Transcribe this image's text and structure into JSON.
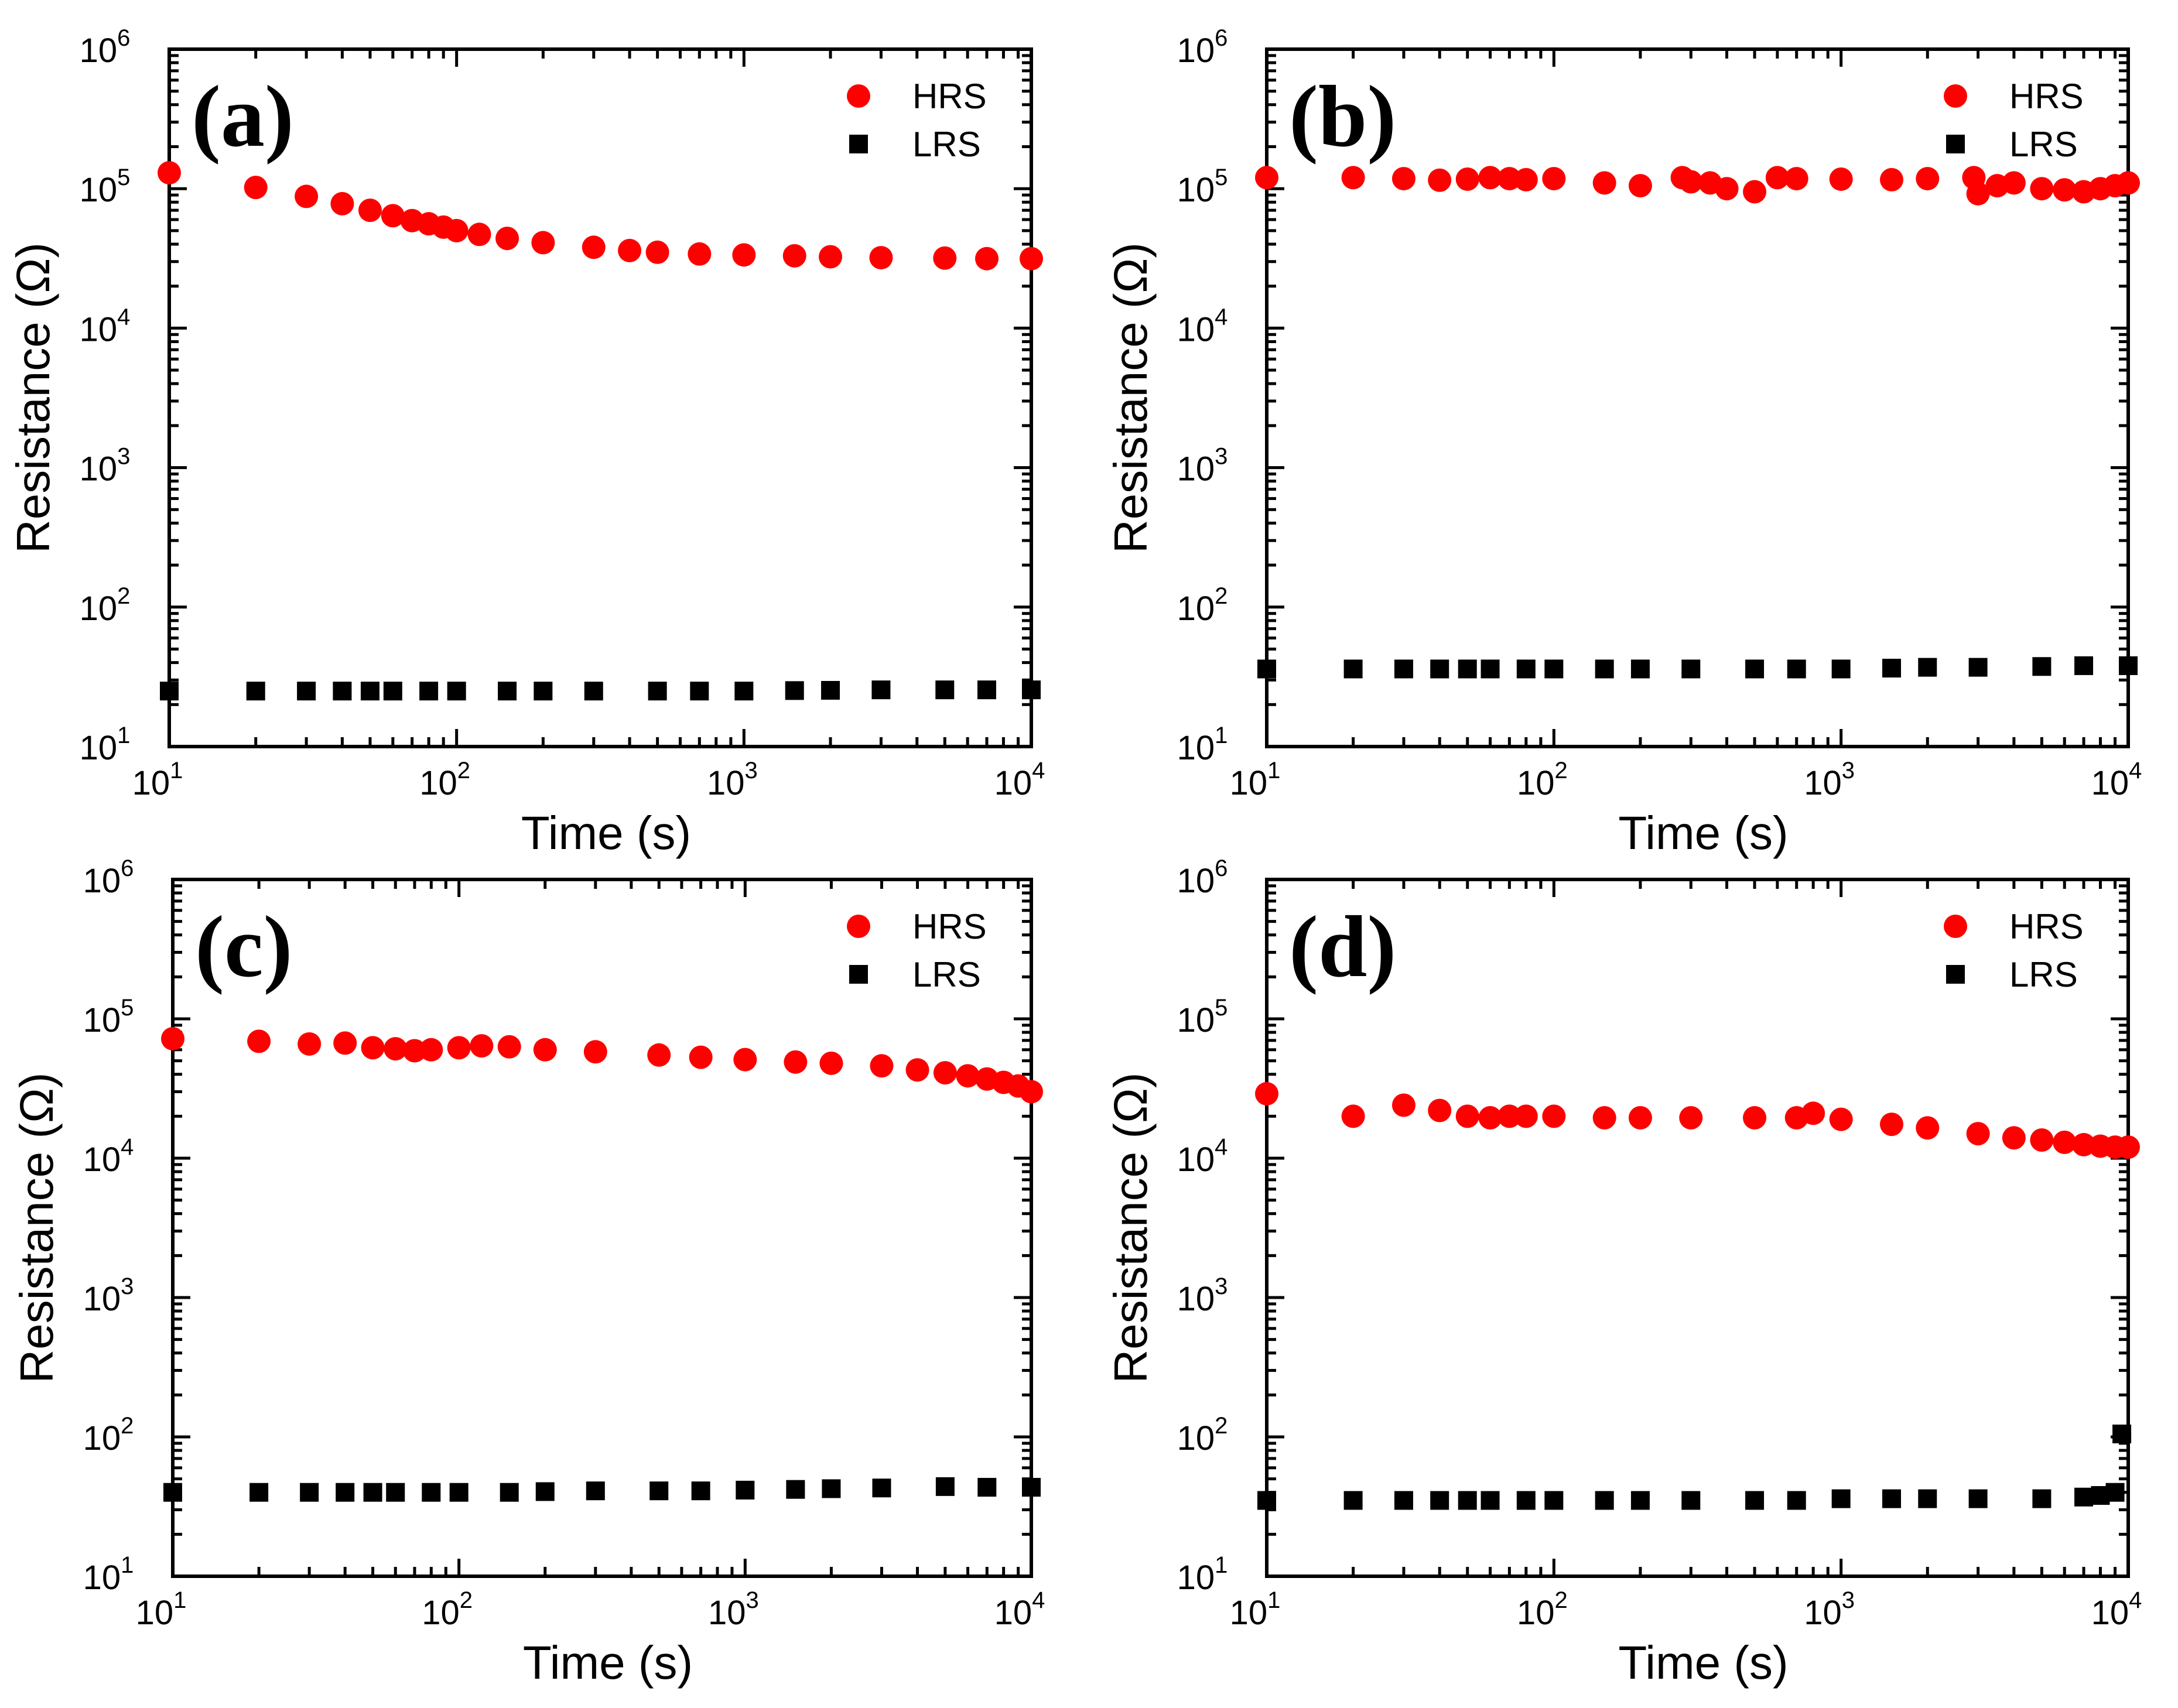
{
  "figure": {
    "description_free": true
  },
  "chart_data": [
    {
      "type": "scatter",
      "panel_label": "(a)",
      "xlabel": "Time (s)",
      "ylabel": "Resistance (Ω)",
      "xscale": "log",
      "yscale": "log",
      "xlim": [
        10,
        10000
      ],
      "ylim": [
        10,
        1000000
      ],
      "x_tick_labels": [
        {
          "base": "10",
          "exp": "1"
        },
        {
          "base": "10",
          "exp": "2"
        },
        {
          "base": "10",
          "exp": "3"
        },
        {
          "base": "10",
          "exp": "4"
        }
      ],
      "y_tick_labels": [
        {
          "base": "10",
          "exp": "1"
        },
        {
          "base": "10",
          "exp": "2"
        },
        {
          "base": "10",
          "exp": "3"
        },
        {
          "base": "10",
          "exp": "4"
        },
        {
          "base": "10",
          "exp": "5"
        },
        {
          "base": "10",
          "exp": "6"
        }
      ],
      "legend_position": "top-right",
      "series": [
        {
          "name": "HRS",
          "marker": "circle",
          "color": "#ff0000",
          "x": [
            10,
            20,
            30,
            40,
            50,
            60,
            70,
            80,
            90,
            100,
            120,
            150,
            200,
            300,
            400,
            500,
            700,
            1000,
            1500,
            2000,
            3000,
            5000,
            7000,
            10000
          ],
          "y": [
            130000,
            102000,
            88000,
            78000,
            70000,
            64000,
            59000,
            56000,
            53000,
            50000,
            47000,
            44000,
            41000,
            38000,
            36000,
            35000,
            34000,
            33500,
            33000,
            32500,
            32000,
            31800,
            31500,
            31500
          ]
        },
        {
          "name": "LRS",
          "marker": "square",
          "color": "#000000",
          "x": [
            10,
            20,
            30,
            40,
            50,
            60,
            80,
            100,
            150,
            200,
            300,
            500,
            700,
            1000,
            1500,
            2000,
            3000,
            5000,
            7000,
            10000
          ],
          "y": [
            25,
            25,
            25,
            25,
            25,
            25,
            25,
            25,
            25,
            25,
            25,
            25,
            25,
            25,
            25.2,
            25.3,
            25.5,
            25.5,
            25.5,
            25.5
          ]
        }
      ]
    },
    {
      "type": "scatter",
      "panel_label": "(b)",
      "xlabel": "Time (s)",
      "ylabel": "Resistance (Ω)",
      "xscale": "log",
      "yscale": "log",
      "xlim": [
        10,
        10000
      ],
      "ylim": [
        10,
        1000000
      ],
      "x_tick_labels": [
        {
          "base": "10",
          "exp": "1"
        },
        {
          "base": "10",
          "exp": "2"
        },
        {
          "base": "10",
          "exp": "3"
        },
        {
          "base": "10",
          "exp": "4"
        }
      ],
      "y_tick_labels": [
        {
          "base": "10",
          "exp": "1"
        },
        {
          "base": "10",
          "exp": "2"
        },
        {
          "base": "10",
          "exp": "3"
        },
        {
          "base": "10",
          "exp": "4"
        },
        {
          "base": "10",
          "exp": "5"
        },
        {
          "base": "10",
          "exp": "6"
        }
      ],
      "legend_position": "top-right",
      "series": [
        {
          "name": "HRS",
          "marker": "circle",
          "color": "#ff0000",
          "x": [
            10,
            20,
            30,
            40,
            50,
            60,
            70,
            80,
            100,
            150,
            200,
            280,
            300,
            350,
            400,
            500,
            600,
            700,
            1000,
            1500,
            2000,
            2900,
            3000,
            3500,
            4000,
            5000,
            6000,
            7000,
            8000,
            9000,
            10000
          ],
          "y": [
            120000,
            120000,
            118000,
            115000,
            117000,
            120000,
            118000,
            116000,
            118000,
            110000,
            105000,
            120000,
            112000,
            110000,
            100000,
            95000,
            120000,
            118000,
            117000,
            116000,
            118000,
            120000,
            92000,
            105000,
            110000,
            100000,
            98000,
            95000,
            100000,
            105000,
            110000
          ]
        },
        {
          "name": "LRS",
          "marker": "square",
          "color": "#000000",
          "x": [
            10,
            20,
            30,
            40,
            50,
            60,
            80,
            100,
            150,
            200,
            300,
            500,
            700,
            1000,
            1500,
            2000,
            3000,
            5000,
            7000,
            10000
          ],
          "y": [
            36,
            36,
            36,
            36,
            36,
            36,
            36,
            36,
            36,
            36,
            36,
            36,
            36,
            36,
            36.5,
            37,
            37,
            37.5,
            38,
            38
          ]
        }
      ]
    },
    {
      "type": "scatter",
      "panel_label": "(c)",
      "xlabel": "Time (s)",
      "ylabel": "Resistance (Ω)",
      "xscale": "log",
      "yscale": "log",
      "xlim": [
        10,
        10000
      ],
      "ylim": [
        10,
        1000000
      ],
      "x_tick_labels": [
        {
          "base": "10",
          "exp": "1"
        },
        {
          "base": "10",
          "exp": "2"
        },
        {
          "base": "10",
          "exp": "3"
        },
        {
          "base": "10",
          "exp": "4"
        }
      ],
      "y_tick_labels": [
        {
          "base": "10",
          "exp": "1"
        },
        {
          "base": "10",
          "exp": "2"
        },
        {
          "base": "10",
          "exp": "3"
        },
        {
          "base": "10",
          "exp": "4"
        },
        {
          "base": "10",
          "exp": "5"
        },
        {
          "base": "10",
          "exp": "6"
        }
      ],
      "legend_position": "top-right",
      "series": [
        {
          "name": "HRS",
          "marker": "circle",
          "color": "#ff0000",
          "x": [
            10,
            20,
            30,
            40,
            50,
            60,
            70,
            80,
            100,
            120,
            150,
            200,
            300,
            500,
            700,
            1000,
            1500,
            2000,
            3000,
            4000,
            5000,
            6000,
            7000,
            8000,
            9000,
            10000
          ],
          "y": [
            72000,
            69000,
            66000,
            67000,
            62000,
            61000,
            59000,
            60000,
            62000,
            64000,
            63000,
            60000,
            58000,
            55000,
            53000,
            51000,
            49000,
            48000,
            46000,
            43000,
            41000,
            39000,
            37000,
            35000,
            33000,
            30000
          ]
        },
        {
          "name": "LRS",
          "marker": "square",
          "color": "#000000",
          "x": [
            10,
            20,
            30,
            40,
            50,
            60,
            80,
            100,
            150,
            200,
            300,
            500,
            700,
            1000,
            1500,
            2000,
            3000,
            5000,
            7000,
            10000
          ],
          "y": [
            40,
            40,
            40,
            40,
            40,
            40,
            40,
            40,
            40,
            40.5,
            41,
            41,
            41,
            41.5,
            42,
            42.5,
            43,
            44,
            43.5,
            43.5
          ]
        }
      ]
    },
    {
      "type": "scatter",
      "panel_label": "(d)",
      "xlabel": "Time (s)",
      "ylabel": "Resistance (Ω)",
      "xscale": "log",
      "yscale": "log",
      "xlim": [
        10,
        10000
      ],
      "ylim": [
        10,
        1000000
      ],
      "x_tick_labels": [
        {
          "base": "10",
          "exp": "1"
        },
        {
          "base": "10",
          "exp": "2"
        },
        {
          "base": "10",
          "exp": "3"
        },
        {
          "base": "10",
          "exp": "4"
        }
      ],
      "y_tick_labels": [
        {
          "base": "10",
          "exp": "1"
        },
        {
          "base": "10",
          "exp": "2"
        },
        {
          "base": "10",
          "exp": "3"
        },
        {
          "base": "10",
          "exp": "4"
        },
        {
          "base": "10",
          "exp": "5"
        },
        {
          "base": "10",
          "exp": "6"
        }
      ],
      "legend_position": "top-right",
      "series": [
        {
          "name": "HRS",
          "marker": "circle",
          "color": "#ff0000",
          "x": [
            10,
            20,
            30,
            40,
            50,
            60,
            70,
            80,
            100,
            150,
            200,
            300,
            500,
            700,
            800,
            1000,
            1500,
            2000,
            3000,
            4000,
            5000,
            6000,
            7000,
            8000,
            9000,
            10000
          ],
          "y": [
            29000,
            20000,
            24000,
            22000,
            20000,
            19500,
            20000,
            20000,
            20000,
            19500,
            19500,
            19500,
            19500,
            19500,
            21000,
            19000,
            17500,
            16500,
            15000,
            14000,
            13500,
            13000,
            12500,
            12200,
            12000,
            12000
          ]
        },
        {
          "name": "LRS",
          "marker": "square",
          "color": "#000000",
          "x": [
            10,
            20,
            30,
            40,
            50,
            60,
            80,
            100,
            150,
            200,
            300,
            500,
            700,
            1000,
            1500,
            2000,
            3000,
            5000,
            7000,
            8000,
            9000,
            9500
          ],
          "y": [
            35,
            35,
            35,
            35,
            35,
            35,
            35,
            35,
            35,
            35,
            35,
            35,
            35,
            36,
            36,
            36,
            36,
            36,
            37,
            38,
            40,
            105
          ]
        }
      ]
    }
  ]
}
